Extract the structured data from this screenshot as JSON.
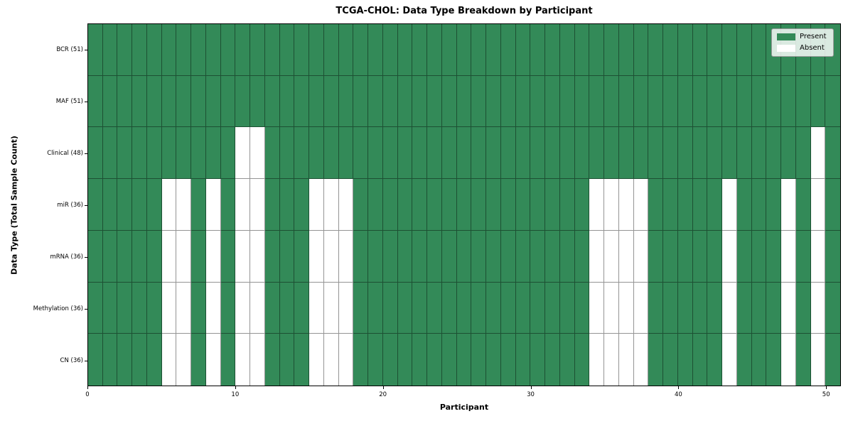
{
  "chart_data": {
    "type": "heatmap",
    "title": "TCGA-CHOL: Data Type Breakdown by Participant",
    "xlabel": "Participant",
    "ylabel": "Data Type (Total Sample Count)",
    "n_participants": 51,
    "x_range": [
      0,
      51
    ],
    "x_ticks": [
      0,
      10,
      20,
      30,
      40,
      50
    ],
    "grid": true,
    "legend_position": "upper right",
    "rows": [
      {
        "label": "BCR (51)",
        "present_count": 51,
        "absent_participants": []
      },
      {
        "label": "MAF (51)",
        "present_count": 51,
        "absent_participants": []
      },
      {
        "label": "Clinical (48)",
        "present_count": 48,
        "absent_participants": [
          10,
          11,
          49
        ]
      },
      {
        "label": "miR (36)",
        "present_count": 36,
        "absent_participants": [
          5,
          6,
          8,
          10,
          11,
          15,
          16,
          17,
          34,
          35,
          36,
          37,
          43,
          47,
          49
        ]
      },
      {
        "label": "mRNA (36)",
        "present_count": 36,
        "absent_participants": [
          5,
          6,
          8,
          10,
          11,
          15,
          16,
          17,
          34,
          35,
          36,
          37,
          43,
          47,
          49
        ]
      },
      {
        "label": "Methylation (36)",
        "present_count": 36,
        "absent_participants": [
          5,
          6,
          8,
          10,
          11,
          15,
          16,
          17,
          34,
          35,
          36,
          37,
          43,
          47,
          49
        ]
      },
      {
        "label": "CN (36)",
        "present_count": 36,
        "absent_participants": [
          5,
          6,
          8,
          10,
          11,
          15,
          16,
          17,
          34,
          35,
          36,
          37,
          43,
          47,
          49
        ]
      }
    ],
    "legend": [
      {
        "label": "Present",
        "color": "#338a58"
      },
      {
        "label": "Absent",
        "color": "#ffffff"
      }
    ],
    "colors": {
      "present": "#338a58",
      "absent": "#ffffff",
      "grid_line": "rgba(0,0,0,0.42)",
      "spine": "#000000",
      "legend_border": "#9a9a9a"
    }
  }
}
